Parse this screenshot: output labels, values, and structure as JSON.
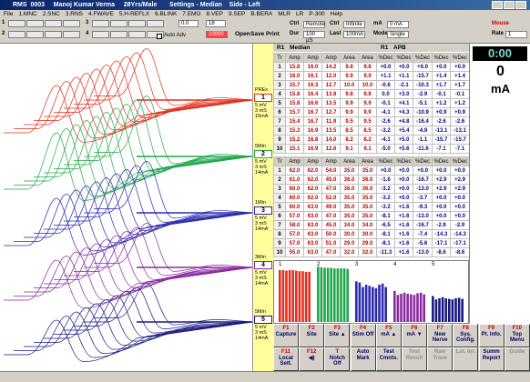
{
  "title_bar": "RMS  0003     Manoj Kumar Verma     28Yrs/Male       Settings - Median    Side - Left",
  "menu": [
    "File",
    "1.MNC",
    "2.SNC",
    "3.RNS",
    "4.FWAVE",
    "5.H-REFLX",
    "6.BLINK",
    "7.EMG",
    "8.VEP",
    "9.SEP",
    "B.BERA",
    "MLR",
    "LR",
    "P-300",
    "Help"
  ],
  "toolbar": {
    "channel_numbers": [
      "1",
      "2",
      "3",
      "4"
    ],
    "auto_adv": "Auto Adv",
    "entry_a": "0.0",
    "entry_b": "18",
    "entry_c": "10000",
    "buttons": [
      "Open",
      "Save",
      "Print"
    ],
    "ctrl_1": [
      "Ctrl",
      "Remote"
    ],
    "dur": [
      "Dur",
      "100 µS"
    ],
    "ctrl_2": [
      "Ctrl",
      "Infinite"
    ],
    "last": [
      "Last",
      "100mA"
    ],
    "ma": [
      "mA",
      "0 mA"
    ],
    "mode": [
      "Mode",
      "Single"
    ],
    "mouse": "Mouse",
    "rate": [
      "Rate",
      "1"
    ]
  },
  "channels": [
    {
      "number": "1",
      "tag": "PREx",
      "settings": [
        "5 mV",
        "3 mS",
        "15mA"
      ],
      "color": "#e0301e"
    },
    {
      "number": "2",
      "tag": "5Min",
      "settings": [
        "5 mV",
        "3 mS",
        "14mA"
      ],
      "color": "#1fa64a"
    },
    {
      "number": "3",
      "tag": "1Min",
      "settings": [
        "5 mV",
        "3 mS",
        "14mA"
      ],
      "color": "#2a2ab0"
    },
    {
      "number": "4",
      "tag": "3Min",
      "settings": [
        "5 mV",
        "3 mS",
        "14mA"
      ],
      "color": "#8a2aa0"
    },
    {
      "number": "5",
      "tag": "5Min",
      "settings": [
        "5 mV",
        "3 mS",
        "14mA"
      ],
      "color": "#1a1a80"
    }
  ],
  "site_header": [
    "R1",
    "Median",
    "R1",
    "APB"
  ],
  "tables": [
    {
      "columns": [
        "Tr",
        "Amp",
        "Amp",
        "Amp",
        "Area",
        "Area",
        "%Dec",
        "%Dec",
        "%Dec",
        "%Dec",
        "%Dec"
      ],
      "rows": [
        [
          "1",
          "15.8",
          "16.0",
          "14.2",
          "9.8",
          "9.8",
          "+0.0",
          "+0.0",
          "+0.0",
          "+0.0",
          "+0.0"
        ],
        [
          "2",
          "16.0",
          "16.1",
          "12.0",
          "9.9",
          "9.9",
          "+1.1",
          "+1.1",
          "-15.7",
          "+1.4",
          "+1.4"
        ],
        [
          "3",
          "15.7",
          "16.3",
          "12.7",
          "10.0",
          "10.0",
          "-0.6",
          "-2.1",
          "-10.3",
          "+1.7",
          "+1.7"
        ],
        [
          "4",
          "15.8",
          "16.4",
          "13.8",
          "9.8",
          "9.8",
          "0.0",
          "+3.0",
          "-2.9",
          "-0.1",
          "-0.1"
        ],
        [
          "5",
          "15.8",
          "16.6",
          "13.5",
          "9.9",
          "9.9",
          "-0.1",
          "+4.1",
          "-5.1",
          "+1.2",
          "+1.2"
        ],
        [
          "6",
          "15.7",
          "16.7",
          "12.7",
          "9.9",
          "9.9",
          "-4.1",
          "+4.3",
          "-10.9",
          "+0.9",
          "+0.9"
        ],
        [
          "7",
          "15.4",
          "16.7",
          "11.9",
          "9.5",
          "9.5",
          "-2.6",
          "+4.8",
          "-16.4",
          "-2.6",
          "-2.6"
        ],
        [
          "8",
          "15.3",
          "16.9",
          "13.5",
          "8.5",
          "8.5",
          "-3.2",
          "+5.4",
          "-4.9",
          "-13.1",
          "-13.1"
        ],
        [
          "9",
          "15.2",
          "16.8",
          "14.0",
          "8.2",
          "8.2",
          "-4.1",
          "+5.0",
          "-1.1",
          "-15.7",
          "-15.7"
        ],
        [
          "10",
          "15.1",
          "16.9",
          "12.6",
          "9.1",
          "9.1",
          "-5.0",
          "+5.6",
          "-11.6",
          "-7.1",
          "-7.1"
        ]
      ]
    },
    {
      "columns": [
        "Tr",
        "Amp",
        "Amp",
        "Amp",
        "Area",
        "Area",
        "%Dec",
        "%Dec",
        "%Dec",
        "%Dec",
        "%Dec"
      ],
      "rows": [
        [
          "1",
          "62.0",
          "62.0",
          "54.0",
          "35.0",
          "35.0",
          "+0.0",
          "+0.0",
          "+0.0",
          "+0.0",
          "+0.0"
        ],
        [
          "2",
          "61.0",
          "62.0",
          "45.0",
          "36.0",
          "36.0",
          "-1.6",
          "+0.0",
          "-16.7",
          "+2.9",
          "+2.9"
        ],
        [
          "3",
          "60.0",
          "62.0",
          "47.0",
          "36.0",
          "36.0",
          "-3.2",
          "+0.0",
          "-13.0",
          "+2.9",
          "+2.9"
        ],
        [
          "4",
          "60.0",
          "62.0",
          "52.0",
          "35.0",
          "35.0",
          "-3.2",
          "+0.0",
          "-3.7",
          "+0.0",
          "+0.0"
        ],
        [
          "5",
          "60.0",
          "63.0",
          "49.0",
          "35.0",
          "35.0",
          "-3.2",
          "+1.6",
          "-9.3",
          "+0.0",
          "+0.0"
        ],
        [
          "6",
          "57.0",
          "63.0",
          "47.0",
          "35.0",
          "35.0",
          "-8.1",
          "+1.6",
          "-13.0",
          "+0.0",
          "+0.0"
        ],
        [
          "7",
          "58.0",
          "63.0",
          "45.0",
          "34.0",
          "34.0",
          "-6.5",
          "+1.6",
          "-16.7",
          "-2.9",
          "-2.9"
        ],
        [
          "8",
          "57.0",
          "63.0",
          "50.0",
          "30.0",
          "30.0",
          "-8.1",
          "+1.6",
          "-7.4",
          "-14.3",
          "-14.3"
        ],
        [
          "9",
          "57.0",
          "63.0",
          "51.0",
          "29.0",
          "29.0",
          "-8.1",
          "+1.6",
          "-5.6",
          "-17.1",
          "-17.1"
        ],
        [
          "10",
          "55.0",
          "63.0",
          "47.0",
          "32.0",
          "32.0",
          "-11.3",
          "+1.6",
          "-13.0",
          "-8.6",
          "-8.6"
        ]
      ]
    }
  ],
  "chart_data": {
    "type": "bar",
    "ylim": [
      0,
      100
    ],
    "groups": [
      {
        "label": "1",
        "color": "#e0301e",
        "values": [
          92,
          92,
          91,
          92,
          92,
          91,
          90,
          90,
          89,
          89
        ]
      },
      {
        "label": "2",
        "color": "#1fa64a",
        "values": [
          98,
          97,
          96,
          96,
          96,
          95,
          95,
          95,
          95,
          94
        ]
      },
      {
        "label": "3",
        "color": "#2a2ab0",
        "values": [
          72,
          70,
          62,
          66,
          64,
          62,
          60,
          66,
          68,
          62
        ]
      },
      {
        "label": "4",
        "color": "#8a2aa0",
        "values": [
          55,
          48,
          50,
          52,
          50,
          49,
          48,
          51,
          52,
          49
        ]
      },
      {
        "label": "5",
        "color": "#1a1a80",
        "values": [
          46,
          40,
          42,
          44,
          42,
          41,
          40,
          42,
          43,
          41
        ]
      }
    ]
  },
  "stimulator": {
    "timer": "0:00",
    "value": "0",
    "unit": "mA"
  },
  "function_keys": [
    [
      {
        "key": "F1",
        "label": "Capture"
      },
      {
        "key": "F2",
        "label": "Site"
      },
      {
        "key": "F3",
        "label": "Site ▲"
      },
      {
        "key": "F4",
        "label": "Stim Off"
      },
      {
        "key": "F5",
        "label": "mA ▲"
      },
      {
        "key": "F6",
        "label": "mA ▼"
      },
      {
        "key": "F7",
        "label": "New Nerve"
      },
      {
        "key": "F8",
        "label": "Sys. Config."
      },
      {
        "key": "F9",
        "label": "Pt. Info."
      },
      {
        "key": "F10",
        "label": "Top Menu"
      }
    ],
    [
      {
        "key": "F11",
        "label": "Local Sett."
      },
      {
        "key": "F12",
        "label": "◀)"
      },
      {
        "key": "T",
        "label": "Notch Off"
      },
      {
        "label": "Auto Mark"
      },
      {
        "label": "Test Cmnts."
      },
      {
        "label": "Test Result",
        "disabled": true
      },
      {
        "label": "Raw Trace",
        "disabled": true
      },
      {
        "label": "Lat. Int.",
        "disabled": true
      },
      {
        "label": "Summ Report"
      },
      {
        "label": "Guide",
        "disabled": true
      }
    ]
  ]
}
